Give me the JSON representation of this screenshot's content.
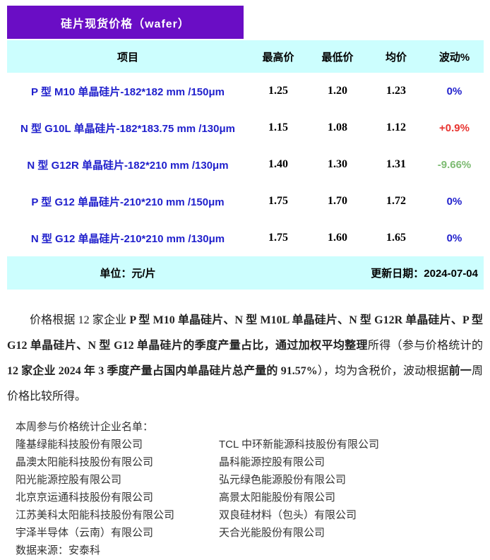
{
  "title": "硅片现货价格（wafer）",
  "colors": {
    "banner_purple": "#6A0DC5",
    "band_cyan": "#CCFEFE",
    "item_blue": "#1F1FCC",
    "fluct_red": "#E8332F",
    "fluct_green": "#7DBB72",
    "body_text": "#333333"
  },
  "table": {
    "headers": [
      "项目",
      "最高价",
      "最低价",
      "均价",
      "波动%"
    ],
    "rows": [
      {
        "item": "P 型 M10 单晶硅片-182*182 mm /150μm",
        "high": "1.25",
        "low": "1.20",
        "avg": "1.23",
        "fluct": "0%",
        "fluct_color": "blue"
      },
      {
        "item": "N 型 G10L 单晶硅片-182*183.75 mm /130μm",
        "high": "1.15",
        "low": "1.08",
        "avg": "1.12",
        "fluct": "+0.9%",
        "fluct_color": "red"
      },
      {
        "item": "N 型 G12R 单晶硅片-182*210 mm /130μm",
        "high": "1.40",
        "low": "1.30",
        "avg": "1.31",
        "fluct": "-9.66%",
        "fluct_color": "green"
      },
      {
        "item": "P 型 G12 单晶硅片-210*210 mm /150μm",
        "high": "1.75",
        "low": "1.70",
        "avg": "1.72",
        "fluct": "0%",
        "fluct_color": "blue"
      },
      {
        "item": "N 型 G12 单晶硅片-210*210 mm /130μm",
        "high": "1.75",
        "low": "1.60",
        "avg": "1.65",
        "fluct": "0%",
        "fluct_color": "blue"
      }
    ],
    "unit_label": "单位：元/片",
    "update_label": "更新日期：2024-07-04"
  },
  "note": {
    "segments": [
      {
        "text": "价格根据 12 家企业 ",
        "bold": false
      },
      {
        "text": "P 型 M10 单晶硅片、N 型 M10L 单晶硅片、N 型 G12R 单晶硅片、P 型 G12 单晶硅片、N 型 G12 单晶硅片的季度产量占比，通过加权平均整理",
        "bold": true
      },
      {
        "text": "所得（参与价格统计的 ",
        "bold": false
      },
      {
        "text": "12 家企业 2024 年 3 季度产量占国内单晶硅片总产量的 91.57%",
        "bold": true
      },
      {
        "text": "），均为含税价，波动根据",
        "bold": false
      },
      {
        "text": "前一",
        "bold": true
      },
      {
        "text": "周价格比较所得。",
        "bold": false
      }
    ]
  },
  "companies": {
    "heading": "本周参与价格统计企业名单：",
    "left": [
      "隆基绿能科技股份有限公司",
      "晶澳太阳能科技股份有限公司",
      "阳光能源控股有限公司",
      "北京京运通科技股份有限公司",
      "江苏美科太阳能科技股份有限公司",
      "宇泽半导体（云南）有限公司"
    ],
    "right": [
      "TCL 中环新能源科技股份有限公司",
      "晶科能源控股有限公司",
      "弘元绿色能源股份有限公司",
      "高景太阳能股份有限公司",
      "双良硅材料（包头）有限公司",
      "天合光能股份有限公司"
    ],
    "source": "数据来源：安泰科"
  }
}
